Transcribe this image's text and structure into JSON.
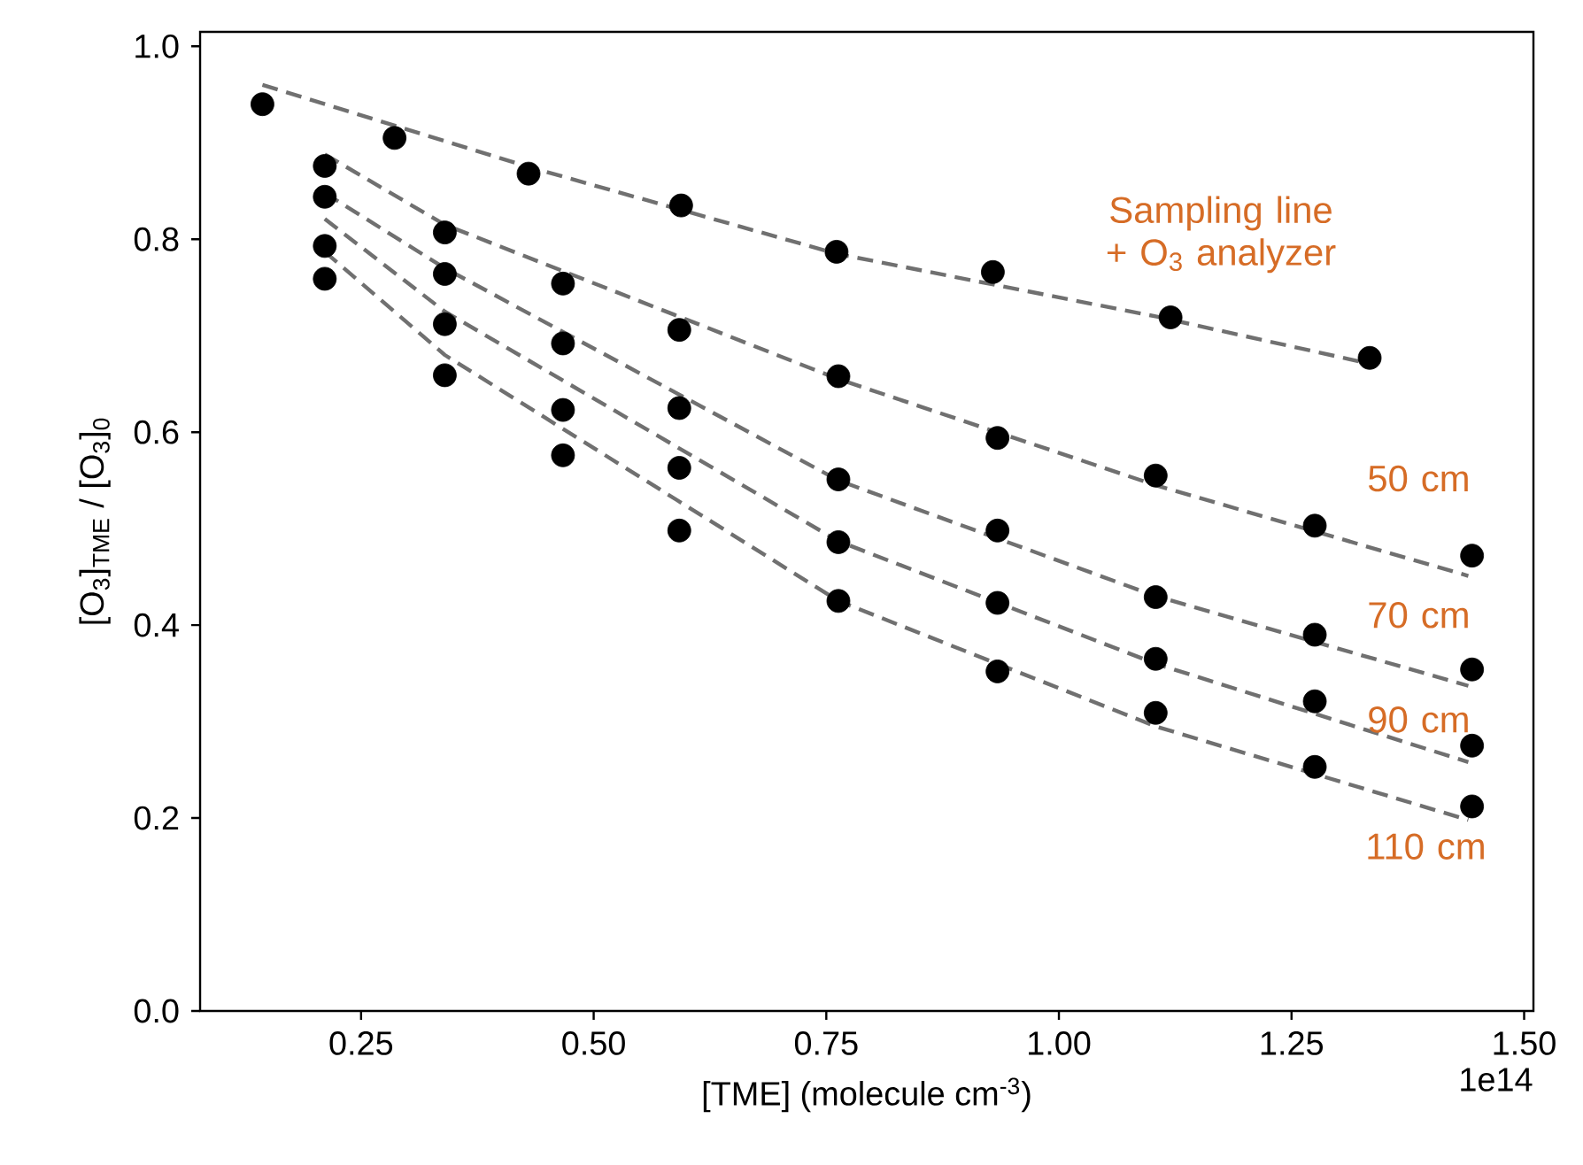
{
  "chart_data": {
    "type": "scatter",
    "marker": "circle",
    "xlabel": "[TME] (molecule cm$^{-3}$)",
    "ylabel": "[O$_{3}$]$_{TME}$ / [O$_{3}$]$_{0}$",
    "xlim": [
      0.077,
      1.51
    ],
    "ylim": [
      0,
      1.015
    ],
    "xticks": [
      {
        "value": 0.25,
        "label": "0.25"
      },
      {
        "value": 0.5,
        "label": "0.50"
      },
      {
        "value": 0.75,
        "label": "0.75"
      },
      {
        "value": 1.0,
        "label": "1.00"
      },
      {
        "value": 1.25,
        "label": "1.25"
      },
      {
        "value": 1.5,
        "label": "1.50"
      }
    ],
    "yticks": [
      {
        "value": 0,
        "label": "0.0"
      },
      {
        "value": 0.2,
        "label": "0.2"
      },
      {
        "value": 0.4,
        "label": "0.4"
      },
      {
        "value": 0.6,
        "label": "0.6"
      },
      {
        "value": 0.8,
        "label": "0.8"
      },
      {
        "value": 1.0,
        "label": "1.0"
      }
    ],
    "annotations": [
      "1e14"
    ],
    "series": [
      {
        "type": "line",
        "name": "Sampling line + O$_{3}$ analyzer",
        "line_style": "dashed",
        "marker": "none",
        "color": "#707070",
        "x": [
          0.144,
          0.43,
          0.761,
          1.104,
          1.334
        ],
        "values": [
          0.96,
          0.875,
          0.785,
          0.72,
          0.671
        ]
      },
      {
        "type": "line",
        "name": "50 cm",
        "line_style": "dashed",
        "marker": "none",
        "color": "#707070",
        "x": [
          0.211,
          0.34,
          0.763,
          1.104,
          1.44
        ],
        "values": [
          0.888,
          0.815,
          0.655,
          0.545,
          0.451
        ]
      },
      {
        "type": "line",
        "name": "70 cm",
        "line_style": "dashed",
        "marker": "none",
        "color": "#707070",
        "x": [
          0.211,
          0.34,
          0.763,
          1.104,
          1.44
        ],
        "values": [
          0.848,
          0.77,
          0.55,
          0.43,
          0.337
        ]
      },
      {
        "type": "line",
        "name": "90 cm",
        "line_style": "dashed",
        "marker": "none",
        "color": "#707070",
        "x": [
          0.211,
          0.34,
          0.763,
          1.104,
          1.44
        ],
        "values": [
          0.821,
          0.725,
          0.487,
          0.36,
          0.258
        ]
      },
      {
        "type": "line",
        "name": "110 cm",
        "line_style": "dashed",
        "marker": "none",
        "color": "#707070",
        "x": [
          0.211,
          0.34,
          0.763,
          1.104,
          1.44
        ],
        "values": [
          0.787,
          0.68,
          0.425,
          0.295,
          0.198
        ]
      },
      {
        "color": "#000000",
        "x": [
          0.144,
          0.286,
          0.43,
          0.594,
          0.761,
          0.929,
          1.12,
          1.334
        ],
        "values": [
          0.94,
          0.905,
          0.868,
          0.835,
          0.787,
          0.766,
          0.719,
          0.677
        ]
      },
      {
        "color": "#000000",
        "x": [
          0.211,
          0.34,
          0.467,
          0.592,
          0.763,
          0.934,
          1.104,
          1.275,
          1.444
        ],
        "values": [
          0.876,
          0.807,
          0.754,
          0.706,
          0.658,
          0.594,
          0.555,
          0.503,
          0.472
        ]
      },
      {
        "color": "#000000",
        "x": [
          0.211,
          0.34,
          0.467,
          0.592,
          0.763,
          0.934,
          1.104,
          1.275,
          1.444
        ],
        "values": [
          0.844,
          0.764,
          0.692,
          0.625,
          0.551,
          0.498,
          0.429,
          0.39,
          0.354
        ]
      },
      {
        "color": "#000000",
        "x": [
          0.211,
          0.34,
          0.467,
          0.592,
          0.763,
          0.934,
          1.104,
          1.275,
          1.444
        ],
        "values": [
          0.793,
          0.712,
          0.623,
          0.563,
          0.486,
          0.423,
          0.365,
          0.321,
          0.275
        ]
      },
      {
        "color": "#000000",
        "x": [
          0.211,
          0.34,
          0.467,
          0.592,
          0.763,
          0.934,
          1.104,
          1.275,
          1.444
        ],
        "values": [
          0.759,
          0.659,
          0.576,
          0.498,
          0.425,
          0.352,
          0.309,
          0.253,
          0.212
        ]
      }
    ]
  }
}
